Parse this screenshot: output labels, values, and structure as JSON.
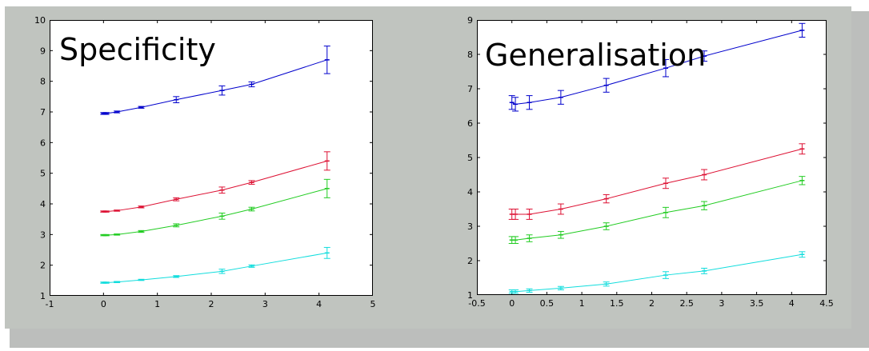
{
  "figure": {
    "background": "#c0c4bf"
  },
  "chart_data": [
    {
      "type": "line",
      "title": "Specificity",
      "xlim": [
        -1,
        5
      ],
      "ylim": [
        1,
        10
      ],
      "xticks": [
        -1,
        0,
        1,
        2,
        3,
        4,
        5
      ],
      "yticks": [
        1,
        2,
        3,
        4,
        5,
        6,
        7,
        8,
        9,
        10
      ],
      "xtick_labels": [
        "-1",
        "0",
        "1",
        "2",
        "3",
        "4",
        "5"
      ],
      "ytick_labels": [
        "1",
        "2",
        "3",
        "4",
        "5",
        "6",
        "7",
        "8",
        "9",
        "10"
      ],
      "grid": false,
      "x": [
        0,
        0.05,
        0.25,
        0.7,
        1.35,
        2.2,
        2.75,
        4.15
      ],
      "series": [
        {
          "color": "#0000cc",
          "values": [
            6.95,
            6.95,
            7.0,
            7.15,
            7.4,
            7.7,
            7.9,
            8.7
          ],
          "errors": [
            0.03,
            0.03,
            0.03,
            0.03,
            0.1,
            0.15,
            0.08,
            0.45
          ]
        },
        {
          "color": "#dd1133",
          "values": [
            3.75,
            3.75,
            3.78,
            3.9,
            4.15,
            4.45,
            4.7,
            5.4
          ],
          "errors": [
            0.02,
            0.02,
            0.02,
            0.03,
            0.05,
            0.1,
            0.06,
            0.3
          ]
        },
        {
          "color": "#22cc22",
          "values": [
            2.98,
            2.98,
            3.0,
            3.1,
            3.3,
            3.6,
            3.83,
            4.5
          ],
          "errors": [
            0.02,
            0.02,
            0.02,
            0.03,
            0.05,
            0.1,
            0.06,
            0.3
          ]
        },
        {
          "color": "#11dddd",
          "values": [
            1.43,
            1.43,
            1.45,
            1.52,
            1.63,
            1.8,
            1.97,
            2.4
          ],
          "errors": [
            0.02,
            0.02,
            0.02,
            0.02,
            0.03,
            0.07,
            0.04,
            0.18
          ]
        }
      ]
    },
    {
      "type": "line",
      "title": "Generalisation",
      "xlim": [
        -0.5,
        4.5
      ],
      "ylim": [
        1,
        9
      ],
      "xticks": [
        -0.5,
        0,
        0.5,
        1,
        1.5,
        2,
        2.5,
        3,
        3.5,
        4,
        4.5
      ],
      "yticks": [
        1,
        2,
        3,
        4,
        5,
        6,
        7,
        8,
        9
      ],
      "xtick_labels": [
        "-0.5",
        "0",
        "0.5",
        "1",
        "1.5",
        "2",
        "2.5",
        "3",
        "3.5",
        "4",
        "4.5"
      ],
      "ytick_labels": [
        "1",
        "2",
        "3",
        "4",
        "5",
        "6",
        "7",
        "8",
        "9"
      ],
      "grid": false,
      "x": [
        0,
        0.05,
        0.25,
        0.7,
        1.35,
        2.2,
        2.75,
        4.15
      ],
      "series": [
        {
          "color": "#0000cc",
          "values": [
            6.6,
            6.55,
            6.6,
            6.75,
            7.1,
            7.6,
            7.95,
            8.7
          ],
          "errors": [
            0.2,
            0.2,
            0.2,
            0.2,
            0.2,
            0.25,
            0.15,
            0.2
          ]
        },
        {
          "color": "#dd1133",
          "values": [
            3.35,
            3.35,
            3.35,
            3.5,
            3.8,
            4.25,
            4.5,
            5.25
          ],
          "errors": [
            0.15,
            0.15,
            0.15,
            0.15,
            0.12,
            0.15,
            0.15,
            0.15
          ]
        },
        {
          "color": "#22cc22",
          "values": [
            2.6,
            2.6,
            2.65,
            2.75,
            3.0,
            3.4,
            3.6,
            4.33
          ],
          "errors": [
            0.1,
            0.1,
            0.1,
            0.1,
            0.1,
            0.15,
            0.12,
            0.12
          ]
        },
        {
          "color": "#11dddd",
          "values": [
            1.1,
            1.1,
            1.13,
            1.2,
            1.32,
            1.58,
            1.7,
            2.18
          ],
          "errors": [
            0.05,
            0.05,
            0.05,
            0.05,
            0.06,
            0.1,
            0.08,
            0.08
          ]
        }
      ]
    }
  ]
}
